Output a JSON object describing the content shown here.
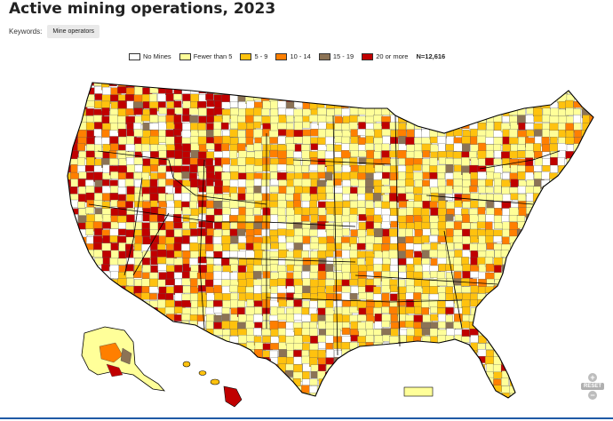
{
  "title": "Active mining operations, 2023",
  "keywords": {
    "label": "Keywords:",
    "chip": "Mine operators"
  },
  "legend": {
    "items": [
      {
        "label": "No Mines",
        "color": "#ffffff"
      },
      {
        "label": "Fewer than 5",
        "color": "#ffff99"
      },
      {
        "label": "5 - 9",
        "color": "#ffc20e"
      },
      {
        "label": "10 - 14",
        "color": "#ff7f00"
      },
      {
        "label": "15 - 19",
        "color": "#8c7355"
      },
      {
        "label": "20 or more",
        "color": "#c00000"
      }
    ],
    "n_label": "N=12,616"
  },
  "controls": {
    "zoom_in": "+",
    "reset": "RESET",
    "zoom_out": "−"
  },
  "colors": {
    "state_border": "#000000",
    "county_border": "#555555",
    "accent_rule": "#1f5aa6"
  }
}
